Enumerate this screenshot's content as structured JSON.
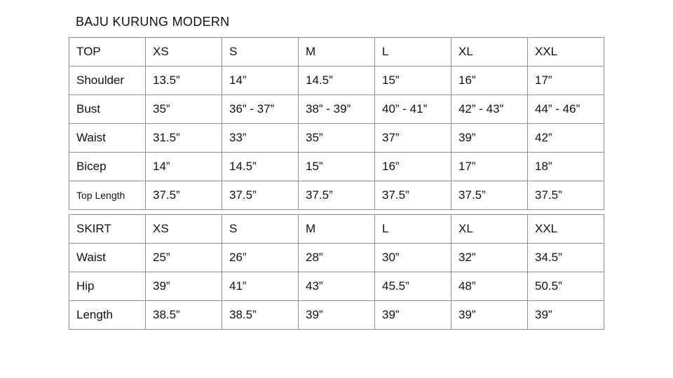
{
  "page_title": "BAJU KURUNG MODERN",
  "colors": {
    "background": "#ffffff",
    "text": "#111111",
    "table_border": "#909090"
  },
  "chart_data": [
    {
      "type": "table",
      "title": "BAJU KURUNG MODERN",
      "section": "TOP",
      "columns": [
        "TOP",
        "XS",
        "S",
        "M",
        "L",
        "XL",
        "XXL"
      ],
      "rows": [
        [
          "Shoulder",
          "13.5”",
          "14”",
          "14.5”",
          "15”",
          "16”",
          "17”"
        ],
        [
          "Bust",
          "35”",
          "36” - 37”",
          "38” - 39”",
          "40” - 41”",
          "42” - 43”",
          "44” - 46”"
        ],
        [
          "Waist",
          "31.5”",
          "33”",
          "35”",
          "37”",
          "39”",
          "42”"
        ],
        [
          "Bicep",
          "14”",
          "14.5”",
          "15”",
          "16”",
          "17”",
          "18”"
        ],
        [
          "Top Length",
          "37.5”",
          "37.5”",
          "37.5”",
          "37.5”",
          "37.5”",
          "37.5”"
        ]
      ]
    },
    {
      "type": "table",
      "title": "BAJU KURUNG MODERN",
      "section": "SKIRT",
      "columns": [
        "SKIRT",
        "XS",
        "S",
        "M",
        "L",
        "XL",
        "XXL"
      ],
      "rows": [
        [
          "Waist",
          "25”",
          "26”",
          "28”",
          "30”",
          "32”",
          "34.5”"
        ],
        [
          "Hip",
          "39”",
          "41”",
          "43”",
          "45.5”",
          "48”",
          "50.5”"
        ],
        [
          "Length",
          "38.5”",
          "38.5”",
          "39”",
          "39”",
          "39”",
          "39”"
        ]
      ]
    }
  ]
}
